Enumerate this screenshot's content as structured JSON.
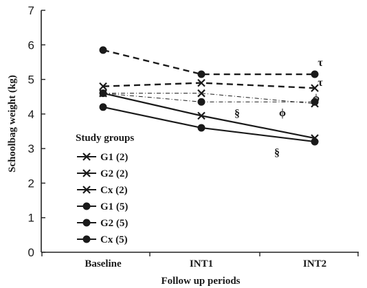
{
  "chart_data": {
    "type": "line",
    "xlabel": "Follow up periods",
    "ylabel": "Schoolbag weight (kg)",
    "categories": [
      "Baseline",
      "INT1",
      "INT2"
    ],
    "ylim": [
      0,
      7
    ],
    "yticks": [
      "0",
      "1",
      "2",
      "3",
      "4",
      "5",
      "6",
      "7"
    ],
    "grid": false,
    "legend": {
      "title": "Study groups",
      "placement": "left-center"
    },
    "series": [
      {
        "name": "G1 (2)",
        "marker": "x",
        "line_style": "dashdot-thin",
        "values": [
          4.6,
          4.6,
          4.3
        ]
      },
      {
        "name": "G2 (2)",
        "marker": "x",
        "line_style": "solid",
        "values": [
          4.6,
          3.95,
          3.3
        ]
      },
      {
        "name": "Cx (2)",
        "marker": "x",
        "line_style": "dashed",
        "values": [
          4.8,
          4.9,
          4.75
        ]
      },
      {
        "name": "G1 (5)",
        "marker": "circle",
        "line_style": "dashdot-thin",
        "values": [
          4.6,
          4.35,
          4.35
        ]
      },
      {
        "name": "G2 (5)",
        "marker": "circle",
        "line_style": "solid",
        "values": [
          4.2,
          3.6,
          3.2
        ]
      },
      {
        "name": "Cx (5)",
        "marker": "circle",
        "line_style": "dashed",
        "values": [
          5.85,
          5.15,
          5.15
        ]
      }
    ],
    "annotations": [
      {
        "text": "τ",
        "x": "INT2",
        "y": 5.35
      },
      {
        "text": "τ",
        "x": "INT2",
        "y": 4.85
      },
      {
        "text": "ϕ",
        "x": "INT2",
        "y": 4.4
      },
      {
        "text": "ϕ",
        "x": "INT1",
        "y": 4.1
      },
      {
        "text": "§",
        "x": "INT1",
        "y": 4.0
      },
      {
        "text": "§",
        "x": "INT1",
        "y": 3.1
      }
    ]
  }
}
